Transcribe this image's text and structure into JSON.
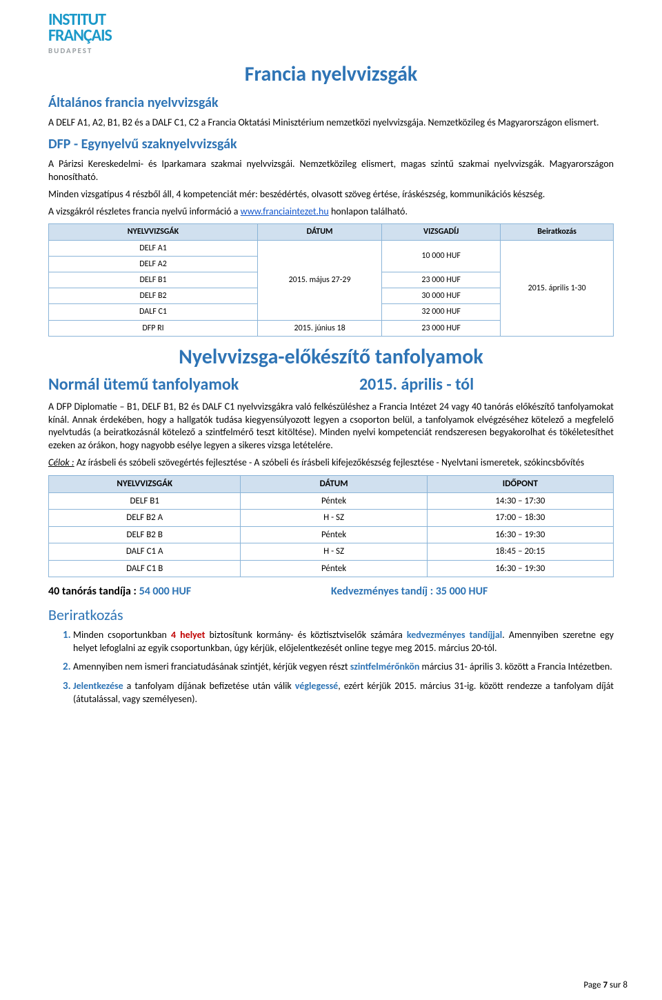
{
  "logo": {
    "line1": "INSTITUT",
    "line2": "FRANÇAIS",
    "sub": "BUDAPEST"
  },
  "mainTitle": "Francia nyelvvizsgák",
  "sec1": {
    "title": "Általános francia nyelvvizsgák",
    "p": "A DELF A1, A2, B1, B2 és a DALF C1, C2 a Francia Oktatási Minisztérium nemzetközi nyelvvizsgája. Nemzetközileg és Magyarországon elismert."
  },
  "sec2": {
    "title": "DFP - Egynyelvű szaknyelvvizsgák",
    "p1": "A Párizsi Kereskedelmi- és Iparkamara szakmai nyelvvizsgái. Nemzetközileg elismert, magas szintű szakmai nyelvvizsgák. Magyarországon honosítható.",
    "p2": "Minden vizsgatípus 4 részből áll, 4 kompetenciát mér: beszédértés, olvasott szöveg értése, íráskészség, kommunikációs készség.",
    "p3a": "A vizsgákról részletes francia nyelvű információ a ",
    "p3link": "www.franciaintezet.hu",
    "p3b": " honlapon található."
  },
  "table1": {
    "headers": [
      "NYELVVIZSGÁK",
      "DÁTUM",
      "VIZSGADÍJ",
      "Beiratkozás"
    ],
    "rows": [
      {
        "name": "DELF A1"
      },
      {
        "name": "DELF A2"
      },
      {
        "name": "DELF B1",
        "fee": "23 000 HUF"
      },
      {
        "name": "DELF B2",
        "fee": "30 000 HUF"
      },
      {
        "name": "DALF C1",
        "fee": "32 000 HUF"
      },
      {
        "name": "DFP RI",
        "date": "2015. június 18",
        "fee": "23 000 HUF"
      }
    ],
    "date_merged": "2015. május 27-29",
    "fee_a1a2": "10 000 HUF",
    "enroll": "2015. április 1-30"
  },
  "bigTitle2": "Nyelvvizsga-előkészítő tanfolyamok",
  "normHdr": {
    "left": "Normál ütemű tanfolyamok",
    "right": "2015. április - tól"
  },
  "normP": "A DFP Diplomatie – B1, DELF B1, B2 és DALF C1 nyelvvizsgákra való felkészüléshez a Francia Intézet 24 vagy 40 tanórás előkészítő tanfolyamokat kínál. Annak érdekében, hogy a hallgatók tudása kiegyensúlyozott legyen a csoporton belül, a tanfolyamok elvégzéséhez kötelező a megfelelő nyelvtudás (a beiratkozásnál kötelező a szintfelmérő teszt kitöltése). Minden nyelvi kompetenciát rendszeresen begyakorolhat és tökéletesíthet ezeken az órákon, hogy nagyobb esélye legyen a sikeres vizsga letételére.",
  "celok": {
    "label": "Célok :",
    "text": " Az írásbeli és szóbeli szövegértés fejlesztése - A szóbeli és írásbeli kifejezőkészség fejlesztése - Nyelvtani ismeretek, szókincsbővítés"
  },
  "table2": {
    "headers": [
      "NYELVVIZSGÁK",
      "DÁTUM",
      "IDŐPONT"
    ],
    "rows": [
      [
        "DELF B1",
        "Péntek",
        "14:30 – 17:30"
      ],
      [
        "DELF B2 A",
        "H - SZ",
        "17:00 – 18:30"
      ],
      [
        "DELF B2 B",
        "Péntek",
        "16:30 – 19:30"
      ],
      [
        "DALF C1 A",
        "H - SZ",
        "18:45 – 20:15"
      ],
      [
        "DALF C1 B",
        "Péntek",
        "16:30 – 19:30"
      ]
    ]
  },
  "price": {
    "left_label": "40 tanórás tandíja : ",
    "left_val": "54 000 HUF",
    "right_label": "Kedvezményes tandíj : ",
    "right_val": "35 000 HUF"
  },
  "enroll": {
    "title": "Beriratkozás",
    "items": [
      {
        "pre": "Minden csoportunkban ",
        "b1": "4 helyet",
        "mid": " biztosítunk kormány- és köztisztviselők számára ",
        "b2": "kedvezményes tandíjjal",
        "post": ". Amennyiben szeretne egy helyet lefoglalni az egyik csoportunkban, úgy kérjük, előjelentkezését online tegye meg 2015. március 20-tól."
      },
      {
        "pre": "Amennyiben nem ismeri franciatudásának szintjét, kérjük vegyen részt ",
        "b1": "szintfelmérőnkön",
        "post": " március 31- április 3. között a Francia Intézetben."
      },
      {
        "b1": "Jelentkezése",
        "mid": " a tanfolyam díjának befizetése után válik ",
        "b2": "véglegessé",
        "post": ", ezért kérjük 2015. március 31-ig. között rendezze a tanfolyam díját (átutalással, vagy személyesen)."
      }
    ]
  },
  "pagenum": {
    "pre": "Page ",
    "bold": "7",
    "post": " sur 8"
  }
}
